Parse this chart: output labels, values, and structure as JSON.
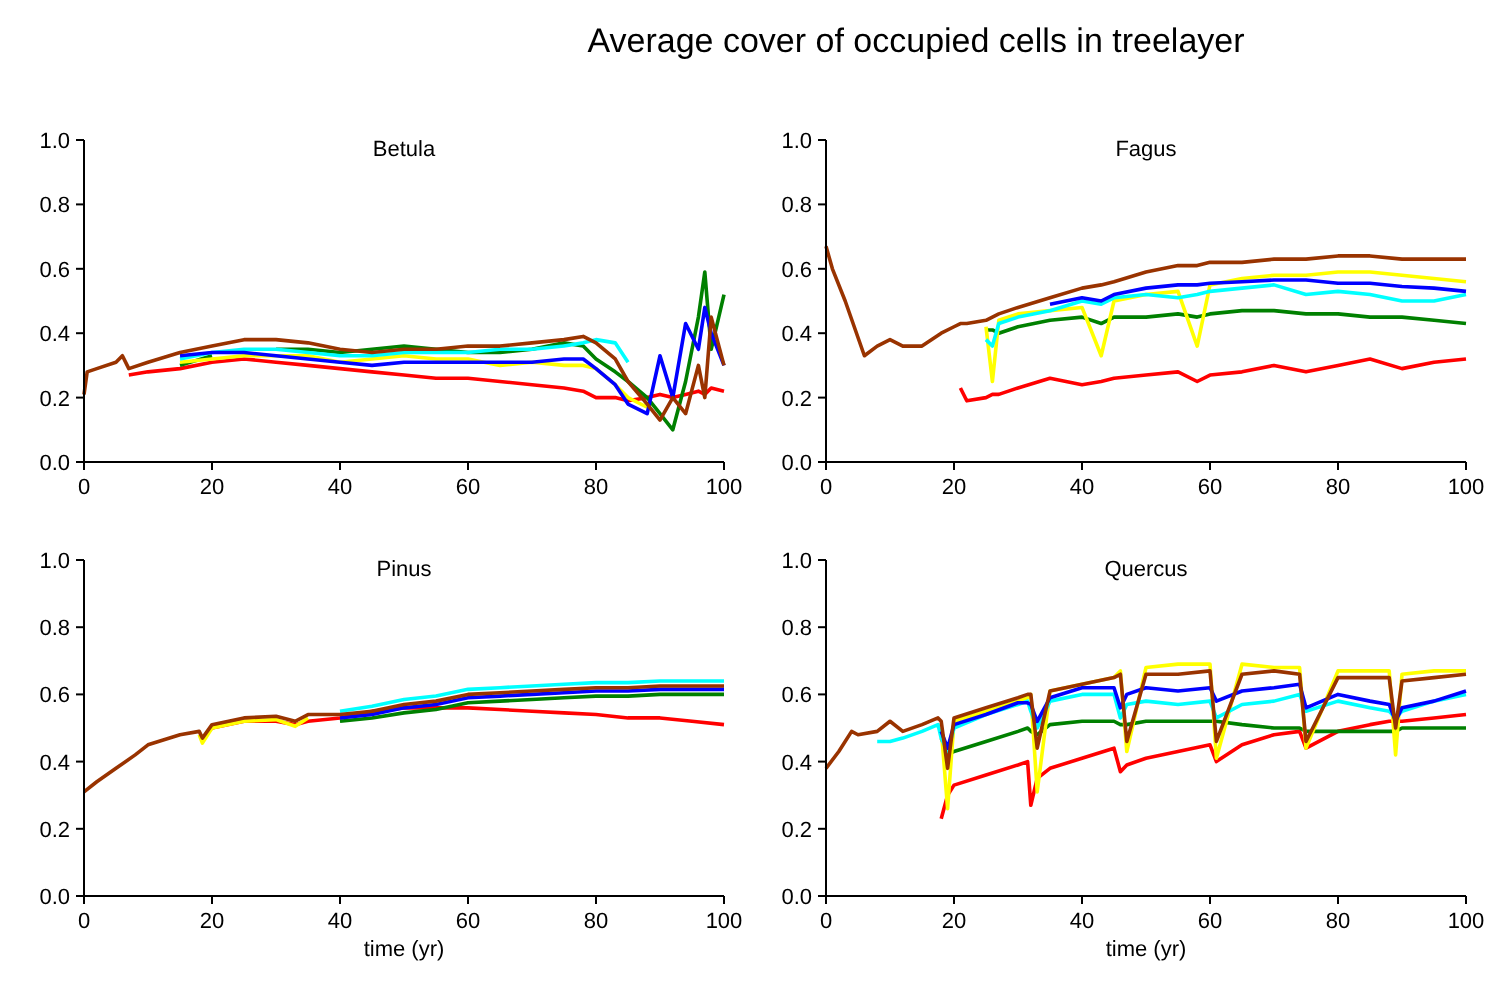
{
  "chart_data": [
    {
      "type": "line",
      "title": "Betula",
      "annotations": [
        "Average cover of occupied cells in treelayer"
      ],
      "x": [
        0,
        0.5,
        2,
        5,
        6,
        7,
        10,
        15,
        20,
        25,
        30,
        35,
        40,
        45,
        50,
        55,
        60,
        65,
        70,
        75,
        78,
        80,
        83,
        85,
        88,
        90,
        92,
        94,
        96,
        97,
        98,
        100
      ],
      "xlim": [
        0,
        100
      ],
      "xticks": [
        0,
        20,
        40,
        60,
        80,
        100
      ],
      "ylim": [
        0,
        1
      ],
      "yticks": [
        {
          "value": 0,
          "label": "0.0"
        },
        {
          "value": 0.2,
          "label": "0.2"
        },
        {
          "value": 0.4,
          "label": "0.4"
        },
        {
          "value": 0.6,
          "label": "0.6"
        },
        {
          "value": 0.8,
          "label": "0.8"
        },
        {
          "value": 1,
          "label": "1.0"
        }
      ],
      "series": [
        {
          "color": "#ff0000",
          "values": [
            null,
            null,
            null,
            null,
            null,
            0.27,
            0.28,
            0.29,
            0.31,
            0.32,
            0.31,
            0.3,
            0.29,
            0.28,
            0.27,
            0.26,
            0.26,
            0.25,
            0.24,
            0.23,
            0.22,
            0.2,
            0.2,
            0.19,
            0.2,
            0.21,
            0.2,
            0.21,
            0.22,
            0.21,
            0.23,
            0.22
          ]
        },
        {
          "color": "#008000",
          "values": [
            null,
            null,
            null,
            null,
            null,
            null,
            null,
            0.3,
            0.33,
            null,
            0.35,
            0.35,
            0.34,
            0.35,
            0.36,
            0.35,
            0.34,
            0.34,
            0.35,
            0.37,
            0.36,
            0.32,
            0.28,
            0.25,
            0.2,
            0.15,
            0.1,
            0.25,
            0.45,
            0.59,
            0.35,
            0.52
          ]
        },
        {
          "color": "#ffff00",
          "values": [
            null,
            null,
            null,
            null,
            null,
            null,
            null,
            0.31,
            0.32,
            0.33,
            0.33,
            0.33,
            0.31,
            0.32,
            0.33,
            0.32,
            0.32,
            0.3,
            0.31,
            0.3,
            0.3,
            0.29,
            0.24,
            0.2,
            0.17,
            null,
            null,
            null,
            null,
            null,
            null,
            null
          ]
        },
        {
          "color": "#00ffff",
          "values": [
            null,
            null,
            null,
            null,
            null,
            null,
            null,
            0.32,
            0.34,
            0.35,
            0.35,
            0.34,
            0.33,
            0.33,
            0.34,
            0.34,
            0.34,
            0.35,
            0.35,
            0.36,
            0.37,
            0.38,
            0.37,
            0.31,
            null,
            null,
            null,
            null,
            null,
            null,
            null,
            null
          ]
        },
        {
          "color": "#0000ff",
          "values": [
            null,
            null,
            null,
            null,
            null,
            null,
            null,
            0.33,
            0.34,
            0.34,
            0.33,
            0.32,
            0.31,
            0.3,
            0.31,
            0.31,
            0.31,
            0.31,
            0.31,
            0.32,
            0.32,
            0.29,
            0.24,
            0.18,
            0.15,
            0.33,
            0.2,
            0.43,
            0.35,
            0.48,
            0.4,
            0.3
          ]
        },
        {
          "color": "#993300",
          "values": [
            0.21,
            0.28,
            0.29,
            0.31,
            0.33,
            0.29,
            0.31,
            0.34,
            0.36,
            0.38,
            0.38,
            0.37,
            0.35,
            0.34,
            0.35,
            0.35,
            0.36,
            0.36,
            0.37,
            0.38,
            0.39,
            0.37,
            0.32,
            0.25,
            0.18,
            0.13,
            0.2,
            0.15,
            0.3,
            0.2,
            0.45,
            0.3
          ]
        }
      ]
    },
    {
      "type": "line",
      "title": "Fagus",
      "x": [
        0,
        1,
        3,
        6,
        8,
        10,
        12,
        15,
        18,
        20,
        21,
        22,
        25,
        26,
        27,
        30,
        35,
        40,
        43,
        45,
        50,
        55,
        58,
        60,
        65,
        70,
        75,
        80,
        85,
        90,
        95,
        100
      ],
      "xlim": [
        0,
        100
      ],
      "xticks": [
        0,
        20,
        40,
        60,
        80,
        100
      ],
      "ylim": [
        0,
        1
      ],
      "yticks": [
        {
          "value": 0,
          "label": "0.0"
        },
        {
          "value": 0.2,
          "label": "0.2"
        },
        {
          "value": 0.4,
          "label": "0.4"
        },
        {
          "value": 0.6,
          "label": "0.6"
        },
        {
          "value": 0.8,
          "label": "0.8"
        },
        {
          "value": 1,
          "label": "1.0"
        }
      ],
      "series": [
        {
          "color": "#ff0000",
          "values": [
            null,
            null,
            null,
            null,
            null,
            null,
            null,
            null,
            null,
            null,
            0.23,
            0.19,
            0.2,
            0.21,
            0.21,
            0.23,
            0.26,
            0.24,
            0.25,
            0.26,
            0.27,
            0.28,
            0.25,
            0.27,
            0.28,
            0.3,
            0.28,
            0.3,
            0.32,
            0.29,
            0.31,
            0.32
          ]
        },
        {
          "color": "#008000",
          "values": [
            null,
            null,
            null,
            null,
            null,
            null,
            null,
            null,
            null,
            null,
            null,
            null,
            0.41,
            0.41,
            0.4,
            0.42,
            0.44,
            0.45,
            0.43,
            0.45,
            0.45,
            0.46,
            0.45,
            0.46,
            0.47,
            0.47,
            0.46,
            0.46,
            0.45,
            0.45,
            0.44,
            0.43
          ]
        },
        {
          "color": "#ffff00",
          "values": [
            null,
            null,
            null,
            null,
            null,
            null,
            null,
            null,
            null,
            null,
            null,
            null,
            0.42,
            0.25,
            0.44,
            0.46,
            0.47,
            0.48,
            0.33,
            0.5,
            0.52,
            0.53,
            0.36,
            0.55,
            0.57,
            0.58,
            0.58,
            0.59,
            0.59,
            0.58,
            0.57,
            0.56
          ]
        },
        {
          "color": "#00ffff",
          "values": [
            null,
            null,
            null,
            null,
            null,
            null,
            null,
            null,
            null,
            null,
            null,
            null,
            0.38,
            0.36,
            0.43,
            0.45,
            0.47,
            0.5,
            0.49,
            0.51,
            0.52,
            0.51,
            0.52,
            0.53,
            0.54,
            0.55,
            0.52,
            0.53,
            0.52,
            0.5,
            0.5,
            0.52
          ]
        },
        {
          "color": "#0000ff",
          "values": [
            null,
            null,
            null,
            null,
            null,
            null,
            null,
            null,
            null,
            null,
            null,
            null,
            null,
            null,
            null,
            null,
            0.49,
            0.51,
            0.5,
            0.52,
            0.54,
            0.55,
            0.55,
            0.555,
            0.56,
            0.565,
            0.565,
            0.555,
            0.555,
            0.545,
            0.54,
            0.53
          ]
        },
        {
          "color": "#993300",
          "values": [
            0.67,
            0.6,
            0.5,
            0.33,
            0.36,
            0.38,
            0.36,
            0.36,
            0.4,
            0.42,
            0.43,
            0.43,
            0.44,
            0.45,
            0.46,
            0.48,
            0.51,
            0.54,
            0.55,
            0.56,
            0.59,
            0.61,
            0.61,
            0.62,
            0.62,
            0.63,
            0.63,
            0.64,
            0.64,
            0.63,
            0.63,
            0.63
          ]
        }
      ]
    },
    {
      "type": "line",
      "title": "Pinus",
      "xlabel": "time (yr)",
      "x": [
        0,
        2,
        5,
        8,
        10,
        15,
        18,
        18.5,
        20,
        25,
        30,
        33,
        35,
        40,
        45,
        50,
        55,
        60,
        65,
        70,
        75,
        80,
        85,
        90,
        95,
        100
      ],
      "xlim": [
        0,
        100
      ],
      "xticks": [
        0,
        20,
        40,
        60,
        80,
        100
      ],
      "ylim": [
        0,
        1
      ],
      "yticks": [
        {
          "value": 0,
          "label": "0.0"
        },
        {
          "value": 0.2,
          "label": "0.2"
        },
        {
          "value": 0.4,
          "label": "0.4"
        },
        {
          "value": 0.6,
          "label": "0.6"
        },
        {
          "value": 0.8,
          "label": "0.8"
        },
        {
          "value": 1,
          "label": "1.0"
        }
      ],
      "series": [
        {
          "color": "#ff0000",
          "values": [
            null,
            null,
            null,
            null,
            null,
            null,
            null,
            0.47,
            0.5,
            0.52,
            0.52,
            0.51,
            0.52,
            0.53,
            0.55,
            0.56,
            0.56,
            0.56,
            0.555,
            0.55,
            0.545,
            0.54,
            0.53,
            0.53,
            0.52,
            0.51
          ]
        },
        {
          "color": "#008000",
          "values": [
            null,
            null,
            null,
            null,
            null,
            null,
            null,
            null,
            null,
            null,
            null,
            null,
            null,
            0.52,
            0.53,
            0.545,
            0.555,
            0.575,
            0.58,
            0.585,
            0.59,
            0.595,
            0.595,
            0.6,
            0.6,
            0.6
          ]
        },
        {
          "color": "#ffff00",
          "values": [
            null,
            null,
            null,
            null,
            null,
            null,
            0.48,
            0.455,
            0.5,
            0.52,
            0.525,
            0.505,
            0.53,
            null,
            null,
            null,
            null,
            null,
            null,
            null,
            null,
            null,
            null,
            null,
            null,
            null
          ]
        },
        {
          "color": "#00ffff",
          "values": [
            null,
            null,
            null,
            null,
            null,
            null,
            null,
            null,
            null,
            null,
            null,
            null,
            null,
            0.55,
            0.565,
            0.585,
            0.595,
            0.615,
            0.62,
            0.625,
            0.63,
            0.635,
            0.635,
            0.64,
            0.64,
            0.64
          ]
        },
        {
          "color": "#0000ff",
          "values": [
            null,
            null,
            null,
            null,
            null,
            null,
            null,
            null,
            null,
            null,
            null,
            null,
            null,
            0.53,
            0.54,
            0.56,
            0.57,
            0.59,
            0.595,
            0.6,
            0.605,
            0.61,
            0.61,
            0.615,
            0.615,
            0.615
          ]
        },
        {
          "color": "#993300",
          "values": [
            0.31,
            0.34,
            0.38,
            0.42,
            0.45,
            0.48,
            0.49,
            0.47,
            0.51,
            0.53,
            0.535,
            0.52,
            0.54,
            0.54,
            0.55,
            0.57,
            0.58,
            0.6,
            0.605,
            0.61,
            0.615,
            0.62,
            0.62,
            0.625,
            0.625,
            0.625
          ]
        }
      ]
    },
    {
      "type": "line",
      "title": "Quercus",
      "xlabel": "time (yr)",
      "x": [
        0,
        2,
        4,
        5,
        8,
        10,
        12,
        15,
        17.5,
        18,
        19,
        20,
        25,
        30,
        31.5,
        32,
        33,
        35,
        40,
        45,
        46,
        47,
        50,
        55,
        60,
        61,
        65,
        70,
        74,
        75,
        80,
        85,
        88,
        89,
        90,
        95,
        100
      ],
      "xlim": [
        0,
        100
      ],
      "xticks": [
        0,
        20,
        40,
        60,
        80,
        100
      ],
      "ylim": [
        0,
        1
      ],
      "yticks": [
        {
          "value": 0,
          "label": "0.0"
        },
        {
          "value": 0.2,
          "label": "0.2"
        },
        {
          "value": 0.4,
          "label": "0.4"
        },
        {
          "value": 0.6,
          "label": "0.6"
        },
        {
          "value": 0.8,
          "label": "0.8"
        },
        {
          "value": 1,
          "label": "1.0"
        }
      ],
      "series": [
        {
          "color": "#ff0000",
          "values": [
            null,
            null,
            null,
            null,
            null,
            null,
            null,
            null,
            null,
            0.23,
            0.3,
            0.33,
            0.36,
            0.39,
            0.4,
            0.27,
            0.35,
            0.38,
            0.41,
            0.44,
            0.37,
            0.39,
            0.41,
            0.43,
            0.45,
            0.4,
            0.45,
            0.48,
            0.49,
            0.44,
            0.49,
            0.51,
            0.52,
            0.52,
            0.52,
            0.53,
            0.54
          ]
        },
        {
          "color": "#008000",
          "values": [
            null,
            null,
            null,
            null,
            null,
            null,
            null,
            null,
            null,
            0.47,
            0.42,
            0.43,
            0.46,
            0.49,
            0.5,
            0.49,
            0.48,
            0.51,
            0.52,
            0.52,
            0.51,
            0.51,
            0.52,
            0.52,
            0.52,
            0.52,
            0.51,
            0.5,
            0.5,
            0.49,
            0.49,
            0.49,
            0.49,
            0.49,
            0.5,
            0.5,
            0.5
          ]
        },
        {
          "color": "#ffff00",
          "values": [
            null,
            null,
            null,
            null,
            null,
            null,
            null,
            null,
            null,
            0.5,
            0.26,
            0.52,
            0.55,
            0.58,
            0.59,
            0.6,
            0.31,
            0.61,
            0.63,
            0.65,
            0.67,
            0.43,
            0.68,
            0.69,
            0.69,
            0.41,
            0.69,
            0.68,
            0.68,
            0.44,
            0.67,
            0.67,
            0.67,
            0.42,
            0.66,
            0.67,
            0.67
          ]
        },
        {
          "color": "#00ffff",
          "values": [
            null,
            null,
            null,
            null,
            0.46,
            0.46,
            0.47,
            0.49,
            0.51,
            0.47,
            0.43,
            0.5,
            0.54,
            0.57,
            0.58,
            0.55,
            0.5,
            0.58,
            0.6,
            0.6,
            0.53,
            0.57,
            0.58,
            0.57,
            0.58,
            0.53,
            0.57,
            0.58,
            0.6,
            0.55,
            0.58,
            0.56,
            0.55,
            0.53,
            0.55,
            0.58,
            0.6
          ]
        },
        {
          "color": "#0000ff",
          "values": [
            null,
            null,
            null,
            null,
            null,
            null,
            null,
            null,
            null,
            0.49,
            0.44,
            0.51,
            0.54,
            0.575,
            0.575,
            0.57,
            0.52,
            0.59,
            0.62,
            0.62,
            0.56,
            0.6,
            0.62,
            0.61,
            0.62,
            0.58,
            0.61,
            0.62,
            0.63,
            0.56,
            0.6,
            0.58,
            0.57,
            0.52,
            0.56,
            0.58,
            0.61
          ]
        },
        {
          "color": "#993300",
          "values": [
            0.38,
            0.43,
            0.49,
            0.48,
            0.49,
            0.52,
            0.49,
            0.51,
            0.53,
            0.52,
            0.38,
            0.53,
            0.56,
            0.59,
            0.6,
            0.6,
            0.44,
            0.61,
            0.63,
            0.65,
            0.66,
            0.46,
            0.66,
            0.66,
            0.67,
            0.46,
            0.66,
            0.67,
            0.66,
            0.46,
            0.65,
            0.65,
            0.65,
            0.5,
            0.64,
            0.65,
            0.66
          ]
        }
      ]
    }
  ]
}
